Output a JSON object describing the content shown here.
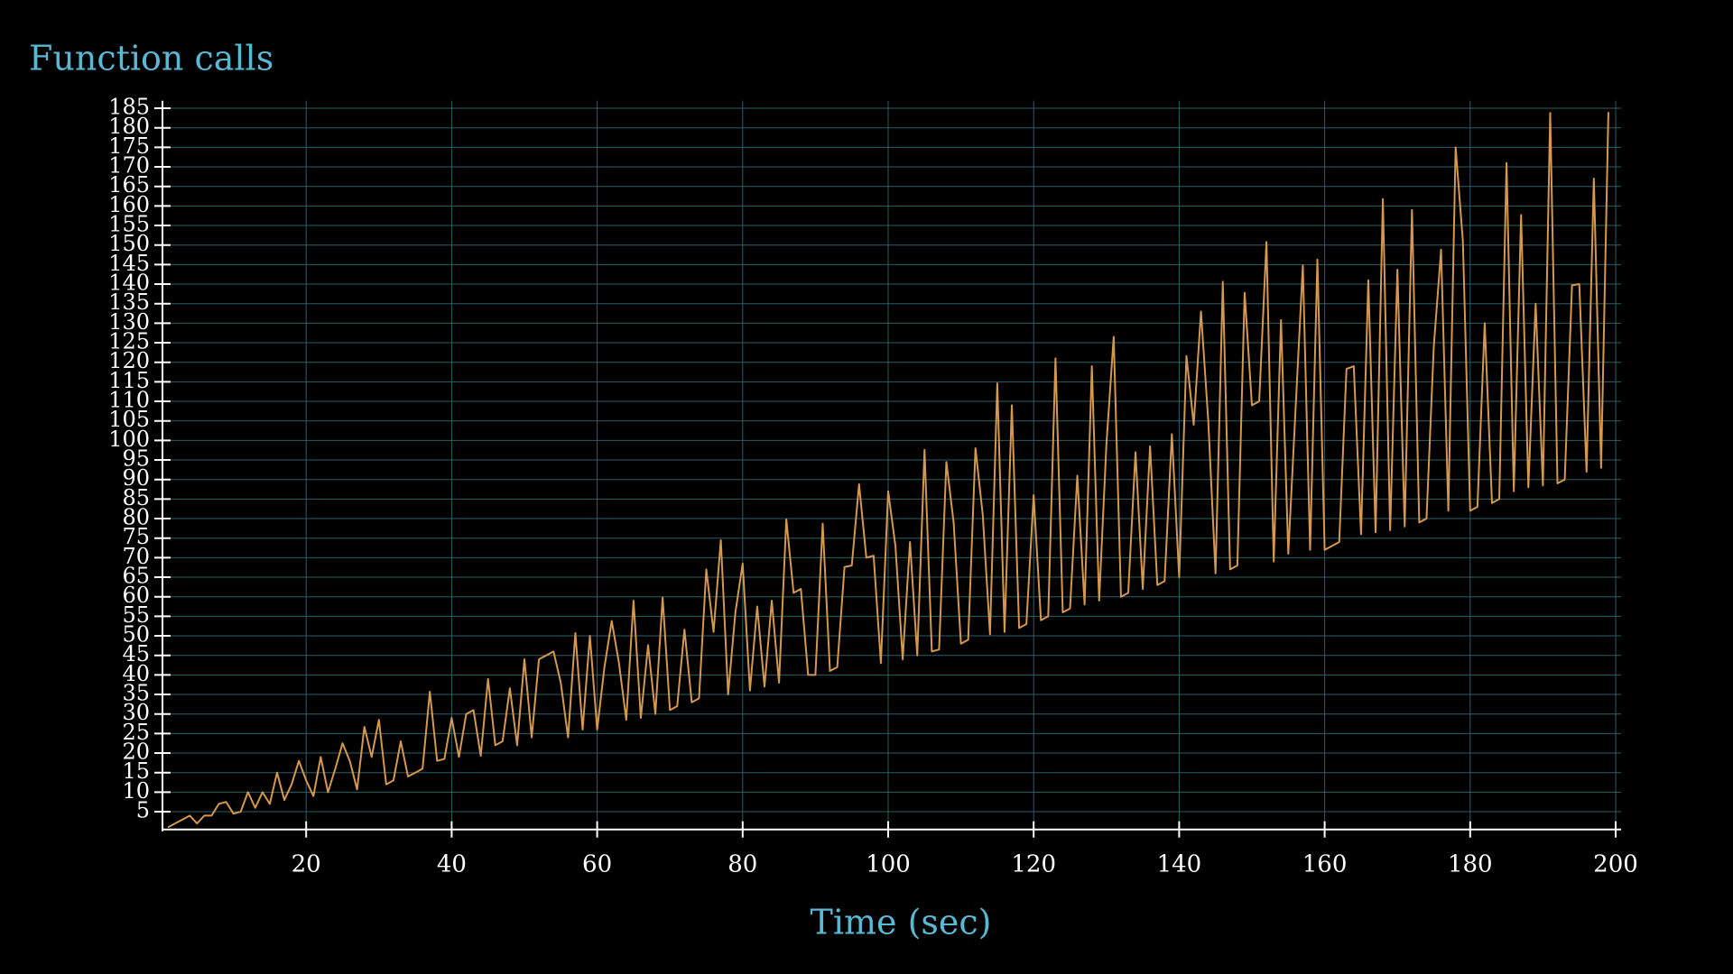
{
  "chart_data": {
    "type": "line",
    "title": "Function calls",
    "x_label": "Time (sec)",
    "x": [
      1,
      2,
      3,
      4,
      5,
      6,
      7,
      8,
      9,
      10,
      11,
      12,
      13,
      14,
      15,
      16,
      17,
      18,
      19,
      20,
      21,
      22,
      23,
      24,
      25,
      26,
      27,
      28,
      29,
      30,
      31,
      32,
      33,
      34,
      35,
      36,
      37,
      38,
      39,
      40,
      41,
      42,
      43,
      44,
      45,
      46,
      47,
      48,
      49,
      50,
      51,
      52,
      53,
      54,
      55,
      56,
      57,
      58,
      59,
      60,
      61,
      62,
      63,
      64,
      65,
      66,
      67,
      68,
      69,
      70,
      71,
      72,
      73,
      74,
      75,
      76,
      77,
      78,
      79,
      80,
      81,
      82,
      83,
      84,
      85,
      86,
      87,
      88,
      89,
      90,
      91,
      92,
      93,
      94,
      95,
      96,
      97,
      98,
      99,
      100,
      101,
      102,
      103,
      104,
      105,
      106,
      107,
      108,
      109,
      110,
      111,
      112,
      113,
      114,
      115,
      116,
      117,
      118,
      119,
      120,
      121,
      122,
      123,
      124,
      125,
      126,
      127,
      128,
      129,
      130,
      131,
      132,
      133,
      134,
      135,
      136,
      137,
      138,
      139,
      140,
      141,
      142,
      143,
      144,
      145,
      146,
      147,
      148,
      149,
      150,
      151,
      152,
      153,
      154,
      155,
      156,
      157,
      158,
      159,
      160,
      161,
      162,
      163,
      164,
      165,
      166,
      167,
      168,
      169,
      170,
      171,
      172,
      173,
      174,
      175,
      176,
      177,
      178,
      179,
      180,
      181,
      182,
      183,
      184,
      185,
      186,
      187,
      188,
      189,
      190,
      191,
      192,
      193,
      194,
      195,
      196,
      197,
      198,
      199
    ],
    "series": [
      {
        "name": "Function calls",
        "color": "#d4984f",
        "values": [
          1,
          2,
          3,
          4,
          2,
          4,
          4,
          7,
          7.5,
          4.5,
          5,
          10,
          6,
          10,
          7,
          15,
          8,
          12,
          18,
          13,
          9,
          19,
          10,
          16,
          22.5,
          18,
          10.7,
          26.7,
          19,
          28.5,
          12,
          13,
          23,
          14,
          15,
          16,
          35.7,
          18,
          18.5,
          29,
          19,
          30,
          31,
          19.3,
          39,
          22,
          23,
          36.6,
          22,
          44,
          24,
          44,
          45,
          46,
          38,
          24,
          50.7,
          26,
          50,
          26,
          42,
          53.8,
          43,
          28.5,
          59,
          29,
          47.6,
          30,
          59.8,
          31,
          32,
          51.6,
          33,
          34,
          67,
          51,
          74.5,
          35,
          56,
          68.5,
          36,
          57.5,
          37,
          59,
          38,
          79.8,
          61,
          62,
          40,
          40,
          78.7,
          41,
          42,
          67.6,
          68,
          88.8,
          70,
          70.5,
          43,
          87,
          73,
          44,
          74,
          45,
          97.6,
          46,
          46.5,
          94.5,
          79,
          48,
          49,
          98,
          81,
          50.4,
          114.6,
          51,
          109,
          52,
          53,
          86,
          54,
          55,
          121,
          56,
          57,
          91,
          58,
          119,
          59,
          99,
          126.5,
          60,
          61,
          97,
          62,
          98.5,
          63,
          64,
          101.6,
          65,
          121.6,
          104,
          133,
          105,
          66,
          140.6,
          67,
          68,
          137.8,
          109,
          110,
          150.8,
          69,
          130.8,
          71,
          108,
          144.8,
          72,
          146.3,
          72,
          73,
          74,
          118.3,
          119,
          76,
          141,
          76.5,
          161.8,
          77,
          143.7,
          78,
          159,
          79,
          80,
          124,
          148.8,
          82,
          175,
          151,
          82,
          83,
          130,
          84,
          85,
          171,
          87,
          157.7,
          88,
          135,
          88.5,
          183.8,
          89,
          90,
          139.7,
          140,
          92,
          167,
          93,
          184
        ]
      }
    ],
    "xlim": [
      0,
      200
    ],
    "xticks": [
      20,
      40,
      60,
      80,
      100,
      120,
      140,
      160,
      180,
      200
    ],
    "ylim": [
      0,
      186
    ],
    "yticks": [
      5,
      10,
      15,
      20,
      25,
      30,
      35,
      40,
      45,
      50,
      55,
      60,
      65,
      70,
      75,
      80,
      85,
      90,
      95,
      100,
      105,
      110,
      115,
      120,
      125,
      130,
      135,
      140,
      145,
      150,
      155,
      160,
      165,
      170,
      175,
      180,
      185
    ],
    "grid": true
  }
}
